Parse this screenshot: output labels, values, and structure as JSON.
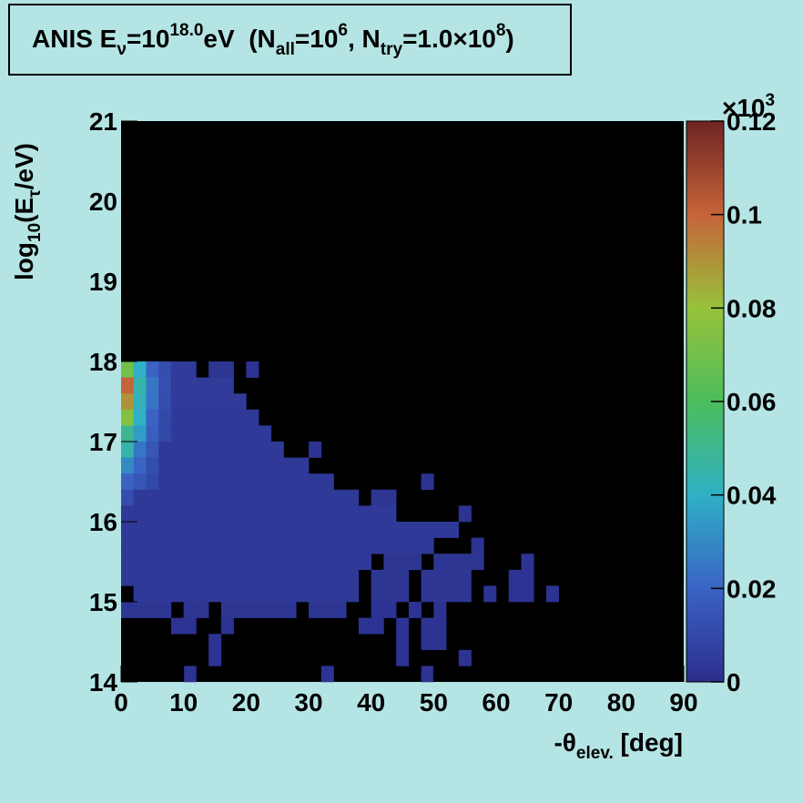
{
  "chart_data": {
    "type": "heatmap",
    "title": [
      "ANIS E",
      "ν",
      "=10",
      "18.0",
      "eV  (N",
      "all",
      "=10",
      "6",
      ", N",
      "try",
      "=1.0×10",
      "8",
      ")"
    ],
    "x_label": [
      "-θ",
      "elev.",
      " [deg]"
    ],
    "y_label": [
      "log",
      "10",
      "(E",
      "τ",
      "/eV)"
    ],
    "z_multiplier": [
      "×10",
      "3"
    ],
    "xlim": [
      0,
      90
    ],
    "xticks": [
      0,
      10,
      20,
      30,
      40,
      50,
      60,
      70,
      80,
      90
    ],
    "ylim": [
      14,
      21
    ],
    "yticks": [
      14,
      15,
      16,
      17,
      18,
      19,
      20,
      21
    ],
    "zlim": [
      0,
      0.12
    ],
    "zticks": [
      0,
      0.02,
      0.04,
      0.06,
      0.08,
      0.1,
      0.12
    ],
    "colorscale": [
      "#2c2e8c",
      "#3a63c4",
      "#2fb0c4",
      "#4cbd5c",
      "#97c23a",
      "#c6643a",
      "#6e2424"
    ],
    "cells": [
      [
        0,
        2,
        17.8,
        18,
        0.07
      ],
      [
        2,
        4,
        17.8,
        18,
        0.04
      ],
      [
        4,
        6,
        17.8,
        18,
        0.02
      ],
      [
        6,
        8,
        17.8,
        18,
        0.012
      ],
      [
        8,
        12,
        17.8,
        18,
        0.005
      ],
      [
        14,
        18,
        17.8,
        18,
        0.003
      ],
      [
        20,
        22,
        17.8,
        18,
        0.002
      ],
      [
        0,
        2,
        17.6,
        17.8,
        0.1
      ],
      [
        2,
        4,
        17.6,
        17.8,
        0.045
      ],
      [
        4,
        6,
        17.6,
        17.8,
        0.025
      ],
      [
        6,
        8,
        17.6,
        17.8,
        0.013
      ],
      [
        8,
        18,
        17.6,
        17.8,
        0.005
      ],
      [
        0,
        2,
        17.4,
        17.6,
        0.09
      ],
      [
        2,
        4,
        17.4,
        17.6,
        0.042
      ],
      [
        4,
        6,
        17.4,
        17.6,
        0.024
      ],
      [
        6,
        8,
        17.4,
        17.6,
        0.012
      ],
      [
        8,
        20,
        17.4,
        17.6,
        0.005
      ],
      [
        0,
        2,
        17.2,
        17.4,
        0.075
      ],
      [
        2,
        4,
        17.2,
        17.4,
        0.04
      ],
      [
        4,
        6,
        17.2,
        17.4,
        0.02
      ],
      [
        6,
        8,
        17.2,
        17.4,
        0.01
      ],
      [
        8,
        22,
        17.2,
        17.4,
        0.004
      ],
      [
        0,
        2,
        17.0,
        17.2,
        0.05
      ],
      [
        2,
        4,
        17.0,
        17.2,
        0.035
      ],
      [
        4,
        6,
        17.0,
        17.2,
        0.018
      ],
      [
        6,
        8,
        17.0,
        17.2,
        0.01
      ],
      [
        8,
        24,
        17.0,
        17.2,
        0.004
      ],
      [
        0,
        2,
        16.8,
        17.0,
        0.045
      ],
      [
        2,
        4,
        16.8,
        17.0,
        0.025
      ],
      [
        4,
        6,
        16.8,
        17.0,
        0.015
      ],
      [
        6,
        26,
        16.8,
        17.0,
        0.004
      ],
      [
        30,
        32,
        16.8,
        17.0,
        0.002
      ],
      [
        0,
        2,
        16.6,
        16.8,
        0.03
      ],
      [
        2,
        4,
        16.6,
        16.8,
        0.02
      ],
      [
        4,
        6,
        16.6,
        16.8,
        0.012
      ],
      [
        6,
        30,
        16.6,
        16.8,
        0.004
      ],
      [
        0,
        2,
        16.4,
        16.6,
        0.02
      ],
      [
        2,
        4,
        16.4,
        16.6,
        0.015
      ],
      [
        4,
        6,
        16.4,
        16.6,
        0.01
      ],
      [
        6,
        34,
        16.4,
        16.6,
        0.004
      ],
      [
        48,
        50,
        16.4,
        16.6,
        0.002
      ],
      [
        0,
        2,
        16.2,
        16.4,
        0.012
      ],
      [
        2,
        38,
        16.2,
        16.4,
        0.004
      ],
      [
        40,
        44,
        16.2,
        16.4,
        0.003
      ],
      [
        0,
        44,
        16.0,
        16.2,
        0.004
      ],
      [
        54,
        56,
        16.0,
        16.2,
        0.002
      ],
      [
        0,
        54,
        15.8,
        16.0,
        0.004
      ],
      [
        0,
        50,
        15.6,
        15.8,
        0.004
      ],
      [
        56,
        58,
        15.6,
        15.8,
        0.002
      ],
      [
        0,
        40,
        15.4,
        15.6,
        0.004
      ],
      [
        42,
        48,
        15.4,
        15.6,
        0.003
      ],
      [
        50,
        58,
        15.4,
        15.6,
        0.003
      ],
      [
        64,
        66,
        15.4,
        15.6,
        0.002
      ],
      [
        0,
        38,
        15.2,
        15.4,
        0.004
      ],
      [
        40,
        46,
        15.2,
        15.4,
        0.003
      ],
      [
        48,
        56,
        15.2,
        15.4,
        0.003
      ],
      [
        62,
        66,
        15.2,
        15.4,
        0.002
      ],
      [
        2,
        38,
        15.0,
        15.2,
        0.004
      ],
      [
        40,
        46,
        15.0,
        15.2,
        0.003
      ],
      [
        48,
        56,
        15.0,
        15.2,
        0.003
      ],
      [
        58,
        60,
        15.0,
        15.2,
        0.002
      ],
      [
        62,
        66,
        15.0,
        15.2,
        0.002
      ],
      [
        68,
        70,
        15.0,
        15.2,
        0.002
      ],
      [
        0,
        8,
        14.8,
        15.0,
        0.003
      ],
      [
        10,
        14,
        14.8,
        15.0,
        0.003
      ],
      [
        16,
        28,
        14.8,
        15.0,
        0.003
      ],
      [
        30,
        36,
        14.8,
        15.0,
        0.003
      ],
      [
        40,
        44,
        14.8,
        15.0,
        0.002
      ],
      [
        46,
        48,
        14.8,
        15.0,
        0.002
      ],
      [
        50,
        52,
        14.8,
        15.0,
        0.002
      ],
      [
        8,
        12,
        14.6,
        14.8,
        0.002
      ],
      [
        16,
        18,
        14.6,
        14.8,
        0.002
      ],
      [
        38,
        42,
        14.6,
        14.8,
        0.002
      ],
      [
        44,
        46,
        14.6,
        14.8,
        0.002
      ],
      [
        48,
        52,
        14.6,
        14.8,
        0.002
      ],
      [
        14,
        16,
        14.4,
        14.6,
        0.002
      ],
      [
        44,
        46,
        14.4,
        14.6,
        0.002
      ],
      [
        48,
        52,
        14.4,
        14.6,
        0.002
      ],
      [
        14,
        16,
        14.2,
        14.4,
        0.002
      ],
      [
        44,
        46,
        14.2,
        14.4,
        0.002
      ],
      [
        54,
        56,
        14.2,
        14.4,
        0.002
      ],
      [
        10,
        12,
        14.0,
        14.2,
        0.002
      ],
      [
        32,
        34,
        14.0,
        14.2,
        0.002
      ],
      [
        48,
        50,
        14.0,
        14.2,
        0.002
      ]
    ]
  }
}
